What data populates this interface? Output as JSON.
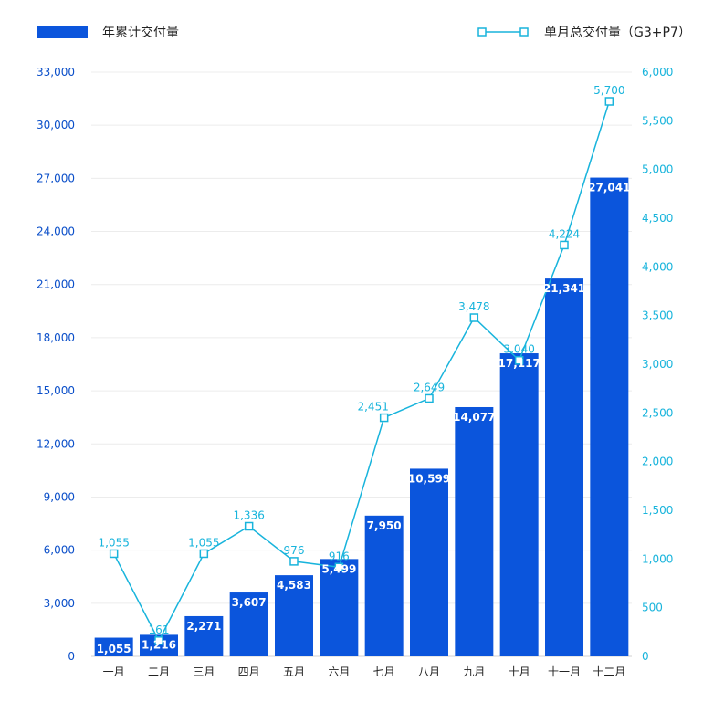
{
  "chart_data": {
    "type": "bar",
    "categories": [
      "一月",
      "二月",
      "三月",
      "四月",
      "五月",
      "六月",
      "七月",
      "八月",
      "九月",
      "十月",
      "十一月",
      "十二月"
    ],
    "series": [
      {
        "name": "年累计交付量",
        "type": "bar",
        "axis": "left",
        "color": "#0b55dc",
        "values": [
          1055,
          1216,
          2271,
          3607,
          4583,
          5499,
          7950,
          10599,
          14077,
          17117,
          21341,
          27041
        ],
        "labels": [
          "1,055",
          "1,216",
          "2,271",
          "3,607",
          "4,583",
          "5,499",
          "7,950",
          "10,599",
          "14,077",
          "17,117",
          "21,341",
          "27,041"
        ]
      },
      {
        "name": "单月总交付量（G3+P7）",
        "type": "line",
        "axis": "right",
        "color": "#18b4dc",
        "values": [
          1055,
          161,
          1055,
          1336,
          976,
          916,
          2451,
          2649,
          3478,
          3040,
          4224,
          5700
        ],
        "labels": [
          "1,055",
          "161",
          "1,055",
          "1,336",
          "976",
          "916",
          "2,451",
          "2,649",
          "3,478",
          "3,040",
          "4,224",
          "5,700"
        ]
      }
    ],
    "y_left": {
      "range": [
        0,
        33000
      ],
      "ticks": [
        0,
        3000,
        6000,
        9000,
        12000,
        15000,
        18000,
        21000,
        24000,
        27000,
        30000,
        33000
      ],
      "tick_labels": [
        "0",
        "3,000",
        "6,000",
        "9,000",
        "12,000",
        "15,000",
        "18,000",
        "21,000",
        "24,000",
        "27,000",
        "30,000",
        "33,000"
      ],
      "color": "#0b4fc9"
    },
    "y_right": {
      "range": [
        0,
        6000
      ],
      "ticks": [
        0,
        500,
        1000,
        1500,
        2000,
        2500,
        3000,
        3500,
        4000,
        4500,
        5000,
        5500,
        6000
      ],
      "tick_labels": [
        "0",
        "500",
        "1,000",
        "1,500",
        "2,000",
        "2,500",
        "3,000",
        "3,500",
        "4,000",
        "4,500",
        "5,000",
        "5,500",
        "6,000"
      ],
      "color": "#18b4dc"
    },
    "grid": true,
    "legend": "top"
  }
}
